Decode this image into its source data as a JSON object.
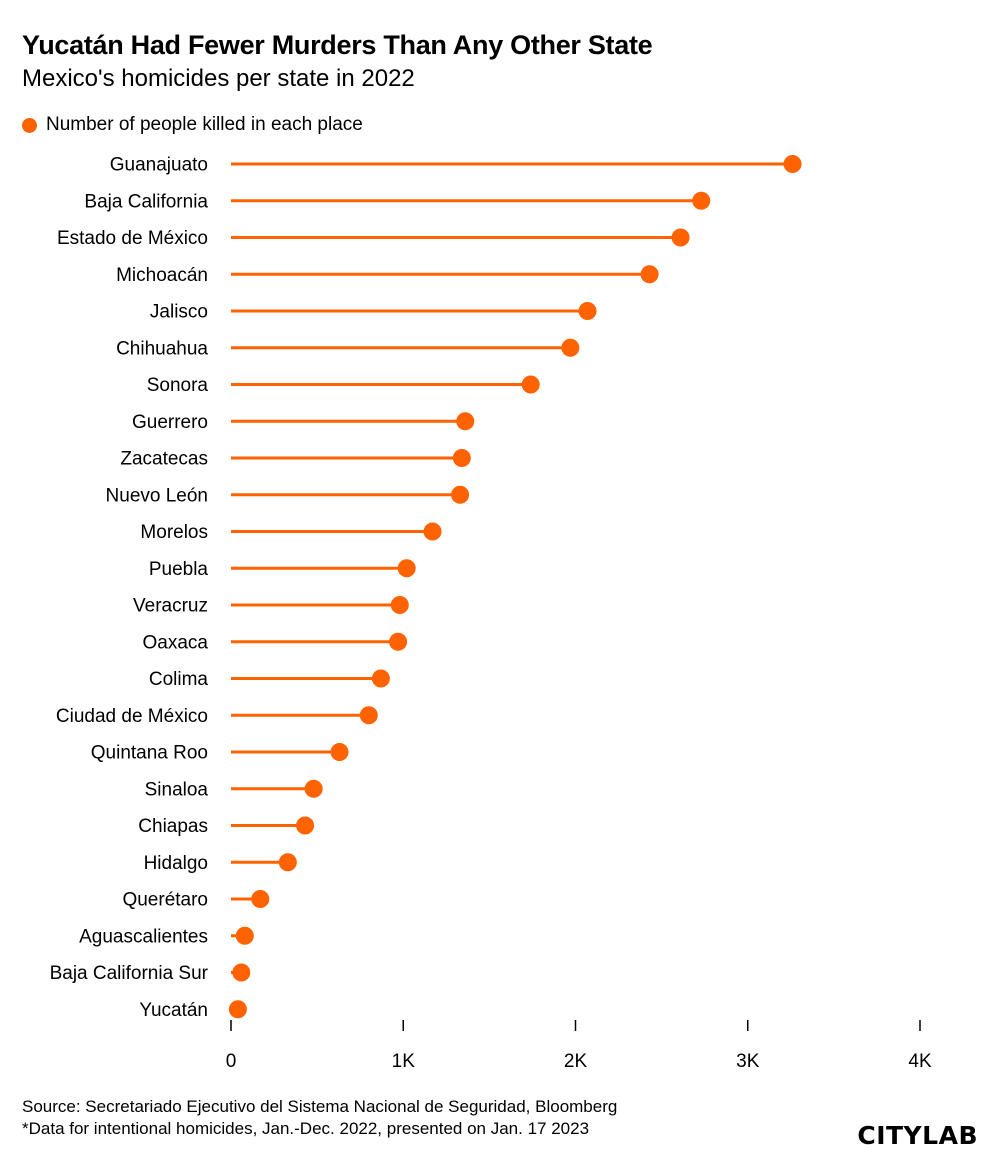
{
  "header": {
    "title": "Yucatán Had Fewer Murders Than Any Other State",
    "subtitle": "Mexico's homicides per state in 2022"
  },
  "legend": {
    "label": "Number of people killed in each place"
  },
  "colors": {
    "accent": "#ff6200",
    "text": "#000000",
    "axis": "#000000"
  },
  "chart_data": {
    "type": "lollipop",
    "title": "Yucatán Had Fewer Murders Than Any Other State",
    "subtitle": "Mexico's homicides per state in 2022",
    "xlabel": "",
    "ylabel": "",
    "xlim": [
      0,
      4000
    ],
    "grid": false,
    "legend_position": "top-left",
    "series": [
      {
        "name": "Number of people killed in each place",
        "categories": [
          "Guanajuato",
          "Baja California",
          "Estado de México",
          "Michoacán",
          "Jalisco",
          "Chihuahua",
          "Sonora",
          "Guerrero",
          "Zacatecas",
          "Nuevo León",
          "Morelos",
          "Puebla",
          "Veracruz",
          "Oaxaca",
          "Colima",
          "Ciudad de México",
          "Quintana Roo",
          "Sinaloa",
          "Chiapas",
          "Hidalgo",
          "Querétaro",
          "Aguascalientes",
          "Baja California Sur",
          "Yucatán"
        ],
        "values": [
          3260,
          2730,
          2610,
          2430,
          2070,
          1970,
          1740,
          1360,
          1340,
          1330,
          1170,
          1020,
          980,
          970,
          870,
          800,
          630,
          480,
          430,
          330,
          170,
          80,
          60,
          40
        ]
      }
    ],
    "x_ticks": [
      0,
      1000,
      2000,
      3000,
      4000
    ],
    "x_tick_labels": [
      "0",
      "1K",
      "2K",
      "3K",
      "4K"
    ]
  },
  "footer": {
    "source": "Source: Secretariado Ejecutivo del Sistema Nacional de Seguridad, Bloomberg",
    "note": "*Data for intentional homicides, Jan.-Dec. 2022, presented on Jan. 17 2023",
    "logo": "CITYLAB"
  }
}
